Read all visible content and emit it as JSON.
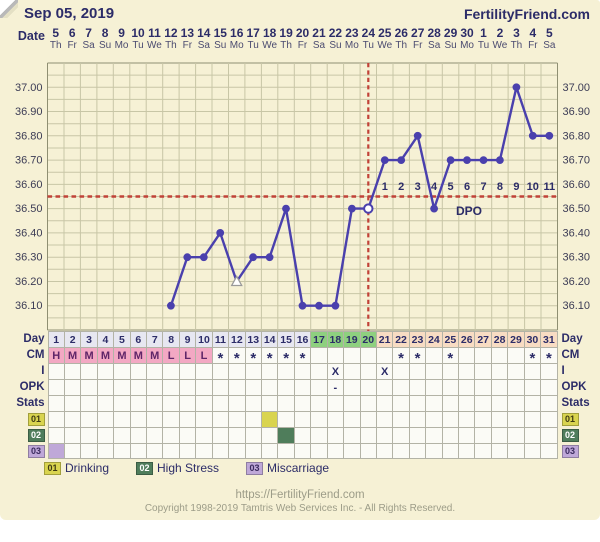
{
  "header": {
    "date": "Sep 05, 2019",
    "brand": "FertilityFriend.com"
  },
  "date_axis": {
    "label": "Date",
    "dates": [
      "5",
      "6",
      "7",
      "8",
      "9",
      "10",
      "11",
      "12",
      "13",
      "14",
      "15",
      "16",
      "17",
      "18",
      "19",
      "20",
      "21",
      "22",
      "23",
      "24",
      "25",
      "26",
      "27",
      "28",
      "29",
      "30",
      "1",
      "2",
      "3",
      "4",
      "5"
    ],
    "weekdays": [
      "Th",
      "Fr",
      "Sa",
      "Su",
      "Mo",
      "Tu",
      "We",
      "Th",
      "Fr",
      "Sa",
      "Su",
      "Mo",
      "Tu",
      "We",
      "Th",
      "Fr",
      "Sa",
      "Su",
      "Mo",
      "Tu",
      "We",
      "Th",
      "Fr",
      "Sa",
      "Su",
      "Mo",
      "Tu",
      "We",
      "Th",
      "Fr",
      "Sa"
    ]
  },
  "chart_data": {
    "type": "line",
    "y_ticks": [
      "37.00",
      "36.90",
      "36.80",
      "36.70",
      "36.60",
      "36.50",
      "36.40",
      "36.30",
      "36.20",
      "36.10"
    ],
    "ylim": [
      36.0,
      37.1
    ],
    "grid_step": 0.05,
    "x_days": [
      1,
      2,
      3,
      4,
      5,
      6,
      7,
      8,
      9,
      10,
      11,
      12,
      13,
      14,
      15,
      16,
      17,
      18,
      19,
      20,
      21,
      22,
      23,
      24,
      25,
      26,
      27,
      28,
      29,
      30,
      31
    ],
    "temps_by_day": [
      null,
      null,
      null,
      null,
      null,
      null,
      null,
      36.1,
      36.3,
      36.3,
      36.4,
      36.2,
      36.3,
      36.3,
      36.5,
      36.1,
      36.1,
      36.1,
      36.5,
      36.5,
      36.7,
      36.7,
      36.8,
      36.5,
      36.7,
      36.7,
      36.7,
      36.7,
      37.0,
      36.8,
      36.8
    ],
    "discarded_day": 12,
    "ovulation_day": 20,
    "coverline_value": 36.55,
    "dpo_start_day": 21,
    "dpo_labels": [
      "1",
      "2",
      "3",
      "4",
      "5",
      "6",
      "7",
      "8",
      "9",
      "10",
      "11"
    ],
    "dpo_caption": "DPO"
  },
  "rows": {
    "day": {
      "label": "Day",
      "values": [
        1,
        2,
        3,
        4,
        5,
        6,
        7,
        8,
        9,
        10,
        11,
        12,
        13,
        14,
        15,
        16,
        17,
        18,
        19,
        20,
        21,
        22,
        23,
        24,
        25,
        26,
        27,
        28,
        29,
        30,
        31
      ],
      "phases": {
        "pre_end": 16,
        "fertile_end": 20
      }
    },
    "cm": {
      "label": "CM",
      "values": [
        "H",
        "M",
        "M",
        "M",
        "M",
        "M",
        "M",
        "L",
        "L",
        "L",
        "*",
        "*",
        "*",
        "*",
        "*",
        "*",
        "",
        "",
        "",
        "",
        "",
        "*",
        "*",
        "",
        "*",
        "",
        "",
        "",
        "",
        "*",
        "*"
      ]
    },
    "i": {
      "label": "I",
      "marks": {
        "18": "X",
        "21": "X"
      }
    },
    "opk": {
      "label": "OPK",
      "marks": {
        "18": "-"
      }
    },
    "stats": {
      "label": "Stats"
    },
    "stat_rows": [
      {
        "id": "01",
        "label": "Drinking",
        "color": "#d9d44f",
        "text_color": "#3f3a12",
        "days": [
          14
        ]
      },
      {
        "id": "02",
        "label": "High Stress",
        "color": "#4f7d5b",
        "text_color": "#ffffff",
        "days": [
          15
        ]
      },
      {
        "id": "03",
        "label": "Miscarriage",
        "color": "#bfa8d8",
        "text_color": "#3b2b5e",
        "days": [
          1
        ]
      }
    ]
  },
  "footer": {
    "url": "https://FertilityFriend.com",
    "copyright": "Copyright 1998-2019 Tamtris Web Services Inc. - All Rights Reserved."
  },
  "colors": {
    "background": "#f6f1d5",
    "grid": "#c8c6a6",
    "grid_border": "#8f8f72",
    "text_navy": "#2c2c68",
    "tick_text": "#3c3c55",
    "temp_line": "#4a40ad",
    "signal_red": "#c14238",
    "phase_pre": "#e7e7f1",
    "phase_fertile": "#8ed07f",
    "phase_luteal": "#f8dcc3",
    "cm_pink": "#f3a8c3",
    "cell_bg": "#fbfbf6"
  }
}
